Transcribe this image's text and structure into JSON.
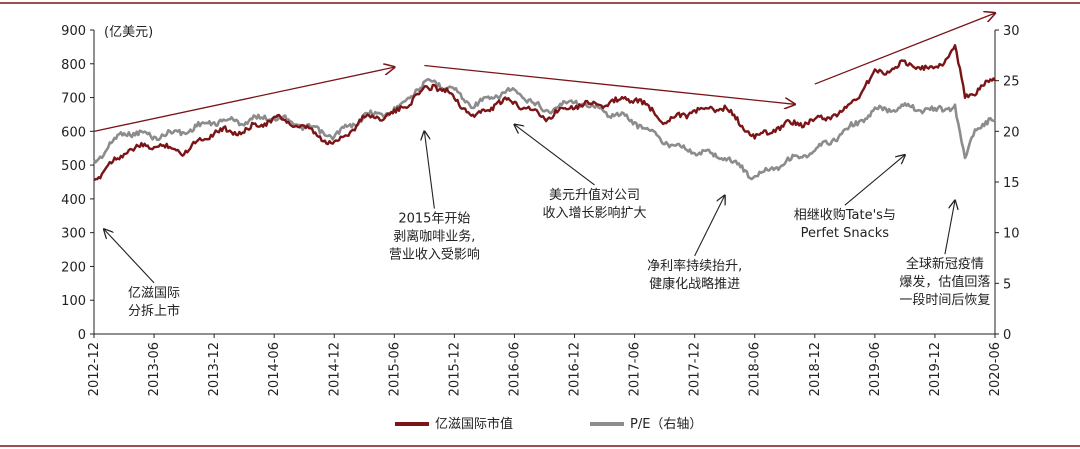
{
  "chart_data": {
    "type": "line",
    "unit_label": "(亿美元)",
    "x_ticks": [
      "2012-12",
      "2013-06",
      "2013-12",
      "2014-06",
      "2014-12",
      "2015-06",
      "2015-12",
      "2016-06",
      "2016-12",
      "2017-06",
      "2017-12",
      "2018-06",
      "2018-12",
      "2019-06",
      "2019-12",
      "2020-06"
    ],
    "y_left": {
      "range": [
        0,
        900
      ],
      "ticks": [
        0,
        100,
        200,
        300,
        400,
        500,
        600,
        700,
        800,
        900
      ]
    },
    "y_right": {
      "range": [
        0,
        30
      ],
      "ticks": [
        0,
        5,
        10,
        15,
        20,
        25,
        30
      ]
    },
    "series": [
      {
        "name": "亿滋国际市值",
        "axis": "left",
        "color": "#7b1416",
        "x": [
          "2012-12",
          "2013-03",
          "2013-06",
          "2013-09",
          "2013-12",
          "2014-03",
          "2014-06",
          "2014-09",
          "2014-12",
          "2015-03",
          "2015-06",
          "2015-08",
          "2015-10",
          "2015-12",
          "2016-02",
          "2016-04",
          "2016-06",
          "2016-09",
          "2016-12",
          "2017-03",
          "2017-06",
          "2017-09",
          "2017-12",
          "2018-03",
          "2018-06",
          "2018-09",
          "2018-12",
          "2019-03",
          "2019-06",
          "2019-09",
          "2019-12",
          "2020-02",
          "2020-03",
          "2020-04",
          "2020-06"
        ],
        "values": [
          455,
          540,
          560,
          540,
          600,
          600,
          640,
          610,
          560,
          640,
          650,
          700,
          740,
          700,
          640,
          680,
          690,
          640,
          680,
          680,
          700,
          630,
          660,
          670,
          580,
          620,
          630,
          660,
          770,
          800,
          780,
          850,
          700,
          720,
          750
        ]
      },
      {
        "name": "P/E（右轴）",
        "axis": "right",
        "color": "#8c8c8c",
        "x": [
          "2012-12",
          "2013-03",
          "2013-06",
          "2013-09",
          "2013-12",
          "2014-03",
          "2014-06",
          "2014-09",
          "2014-12",
          "2015-03",
          "2015-06",
          "2015-08",
          "2015-10",
          "2015-12",
          "2016-02",
          "2016-04",
          "2016-06",
          "2016-09",
          "2016-12",
          "2017-03",
          "2017-06",
          "2017-09",
          "2017-12",
          "2018-03",
          "2018-06",
          "2018-09",
          "2018-12",
          "2019-03",
          "2019-06",
          "2019-09",
          "2019-12",
          "2020-02",
          "2020-03",
          "2020-04",
          "2020-06"
        ],
        "values": [
          17,
          20,
          19.5,
          20,
          21,
          21,
          21.5,
          20.5,
          19.5,
          21.5,
          22,
          24,
          25,
          24,
          22.5,
          23.5,
          24,
          22,
          23,
          22,
          21,
          19,
          18,
          17.5,
          15.5,
          17,
          18,
          20,
          22,
          22.5,
          22,
          22.5,
          17,
          20.5,
          21
        ]
      }
    ],
    "trend_arrows": [
      {
        "from": [
          "2012-12",
          600
        ],
        "to": [
          "2015-06",
          790
        ]
      },
      {
        "from": [
          "2015-09",
          795
        ],
        "to": [
          "2018-10",
          680
        ]
      },
      {
        "from": [
          "2018-12",
          740
        ],
        "to": [
          "2020-06",
          950
        ]
      }
    ],
    "annotations": [
      {
        "lines": [
          "亿滋国际",
          "分拆上市"
        ],
        "text_at": [
          "2013-06",
          110
        ],
        "arrow_to": [
          "2013-01",
          310
        ]
      },
      {
        "lines": [
          "2015年开始",
          "剥离咖啡业务,",
          "营业收入受影响"
        ],
        "text_at": [
          "2015-10",
          330
        ],
        "arrow_to": [
          "2015-09",
          600
        ]
      },
      {
        "lines": [
          "美元升值对公司",
          "收入增长影响扩大"
        ],
        "text_at": [
          "2017-02",
          400
        ],
        "arrow_to": [
          "2016-06",
          620
        ]
      },
      {
        "lines": [
          "净利率持续抬升,",
          "健康化战略推进"
        ],
        "text_at": [
          "2017-12",
          190
        ],
        "arrow_to": [
          "2018-03",
          410
        ]
      },
      {
        "lines": [
          "相继收购Tate's与",
          "Perfet Snacks"
        ],
        "text_at": [
          "2019-03",
          340
        ],
        "arrow_to": [
          "2019-09",
          530
        ]
      },
      {
        "lines": [
          "全球新冠疫情",
          "爆发，估值回落",
          "一段时间后恢复"
        ],
        "text_at": [
          "2020-01",
          195
        ],
        "arrow_to": [
          "2020-02",
          395
        ]
      }
    ],
    "legend_position": "bottom"
  }
}
